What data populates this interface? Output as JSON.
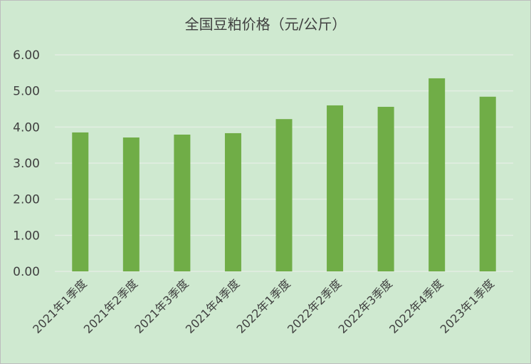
{
  "chart_data": {
    "type": "bar",
    "title": "全国豆粕价格（元/公斤）",
    "xlabel": "",
    "ylabel": "",
    "categories": [
      "2021年1季度",
      "2021年2季度",
      "2021年3季度",
      "2021年4季度",
      "2022年1季度",
      "2022年2季度",
      "2022年3季度",
      "2022年4季度",
      "2023年1季度"
    ],
    "values": [
      3.85,
      3.71,
      3.79,
      3.83,
      4.22,
      4.6,
      4.56,
      5.35,
      4.84
    ],
    "ylim": [
      0,
      6
    ],
    "yticks": [
      "0.00",
      "1.00",
      "2.00",
      "3.00",
      "4.00",
      "5.00",
      "6.00"
    ],
    "grid": true,
    "legend": "none",
    "colors": {
      "bar": "#70ad47",
      "background": "#cfe9d0",
      "grid": "#e3eee3",
      "text": "#404040"
    }
  }
}
